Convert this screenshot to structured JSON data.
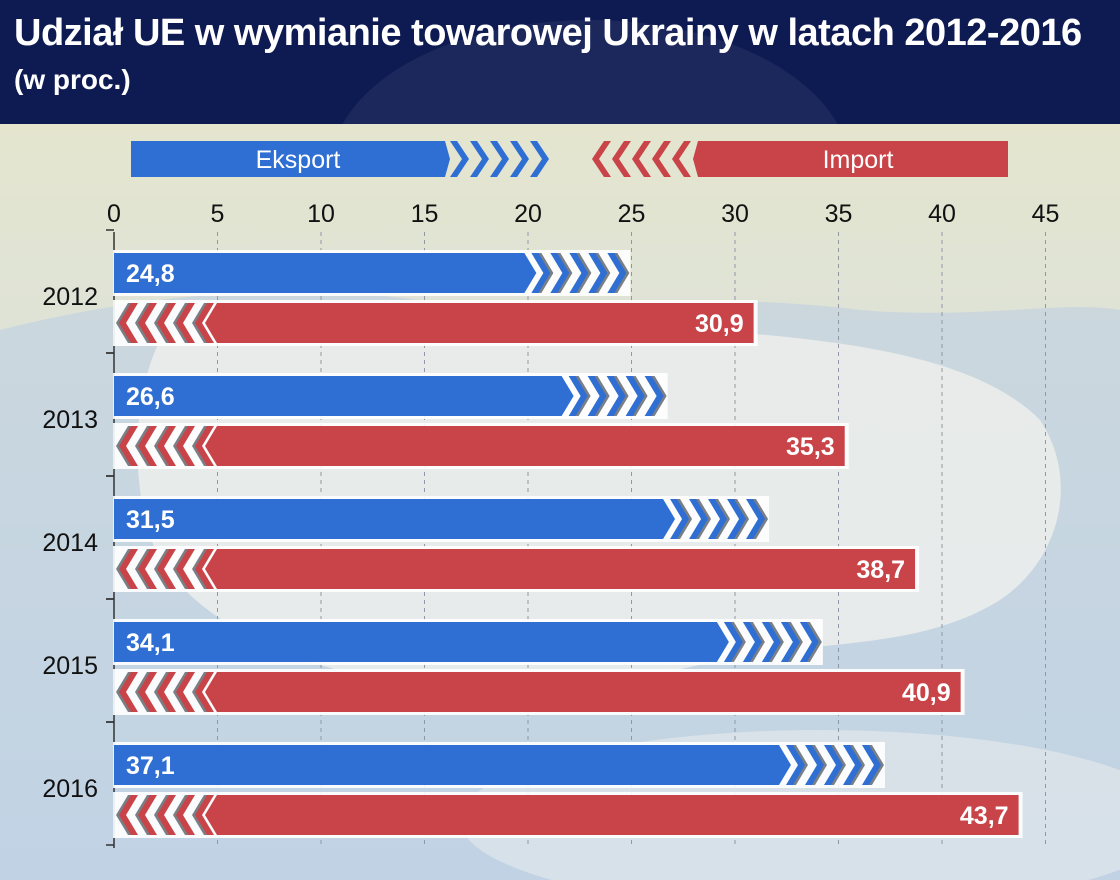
{
  "header": {
    "title": "Udział UE w wymianie towarowej Ukrainy w latach 2012-2016",
    "subtitle": "(w proc.)"
  },
  "legend": {
    "export_label": "Eksport",
    "import_label": "Import"
  },
  "colors": {
    "header_bg": "#0e1b52",
    "export": "#2f6fd4",
    "import": "#c94448"
  },
  "chart_data": {
    "type": "bar",
    "orientation": "horizontal",
    "title": "Udział UE w wymianie towarowej Ukrainy w latach 2012-2016",
    "subtitle": "(w proc.)",
    "categories": [
      "2012",
      "2013",
      "2014",
      "2015",
      "2016"
    ],
    "series": [
      {
        "name": "Eksport",
        "values": [
          24.8,
          26.6,
          31.5,
          34.1,
          37.1
        ],
        "labels": [
          "24,8",
          "26,6",
          "31,5",
          "34,1",
          "37,1"
        ]
      },
      {
        "name": "Import",
        "values": [
          30.9,
          35.3,
          38.7,
          40.9,
          43.7
        ],
        "labels": [
          "30,9",
          "35,3",
          "38,7",
          "40,9",
          "43,7"
        ]
      }
    ],
    "xlim": [
      0,
      45
    ],
    "x_ticks": [
      "0",
      "5",
      "10",
      "15",
      "20",
      "25",
      "30",
      "35",
      "40",
      "45"
    ],
    "x_tick_values": [
      0,
      5,
      10,
      15,
      20,
      25,
      30,
      35,
      40,
      45
    ],
    "xlabel": "",
    "ylabel": "",
    "grid": "vertical dashed",
    "legend_position": "top"
  }
}
